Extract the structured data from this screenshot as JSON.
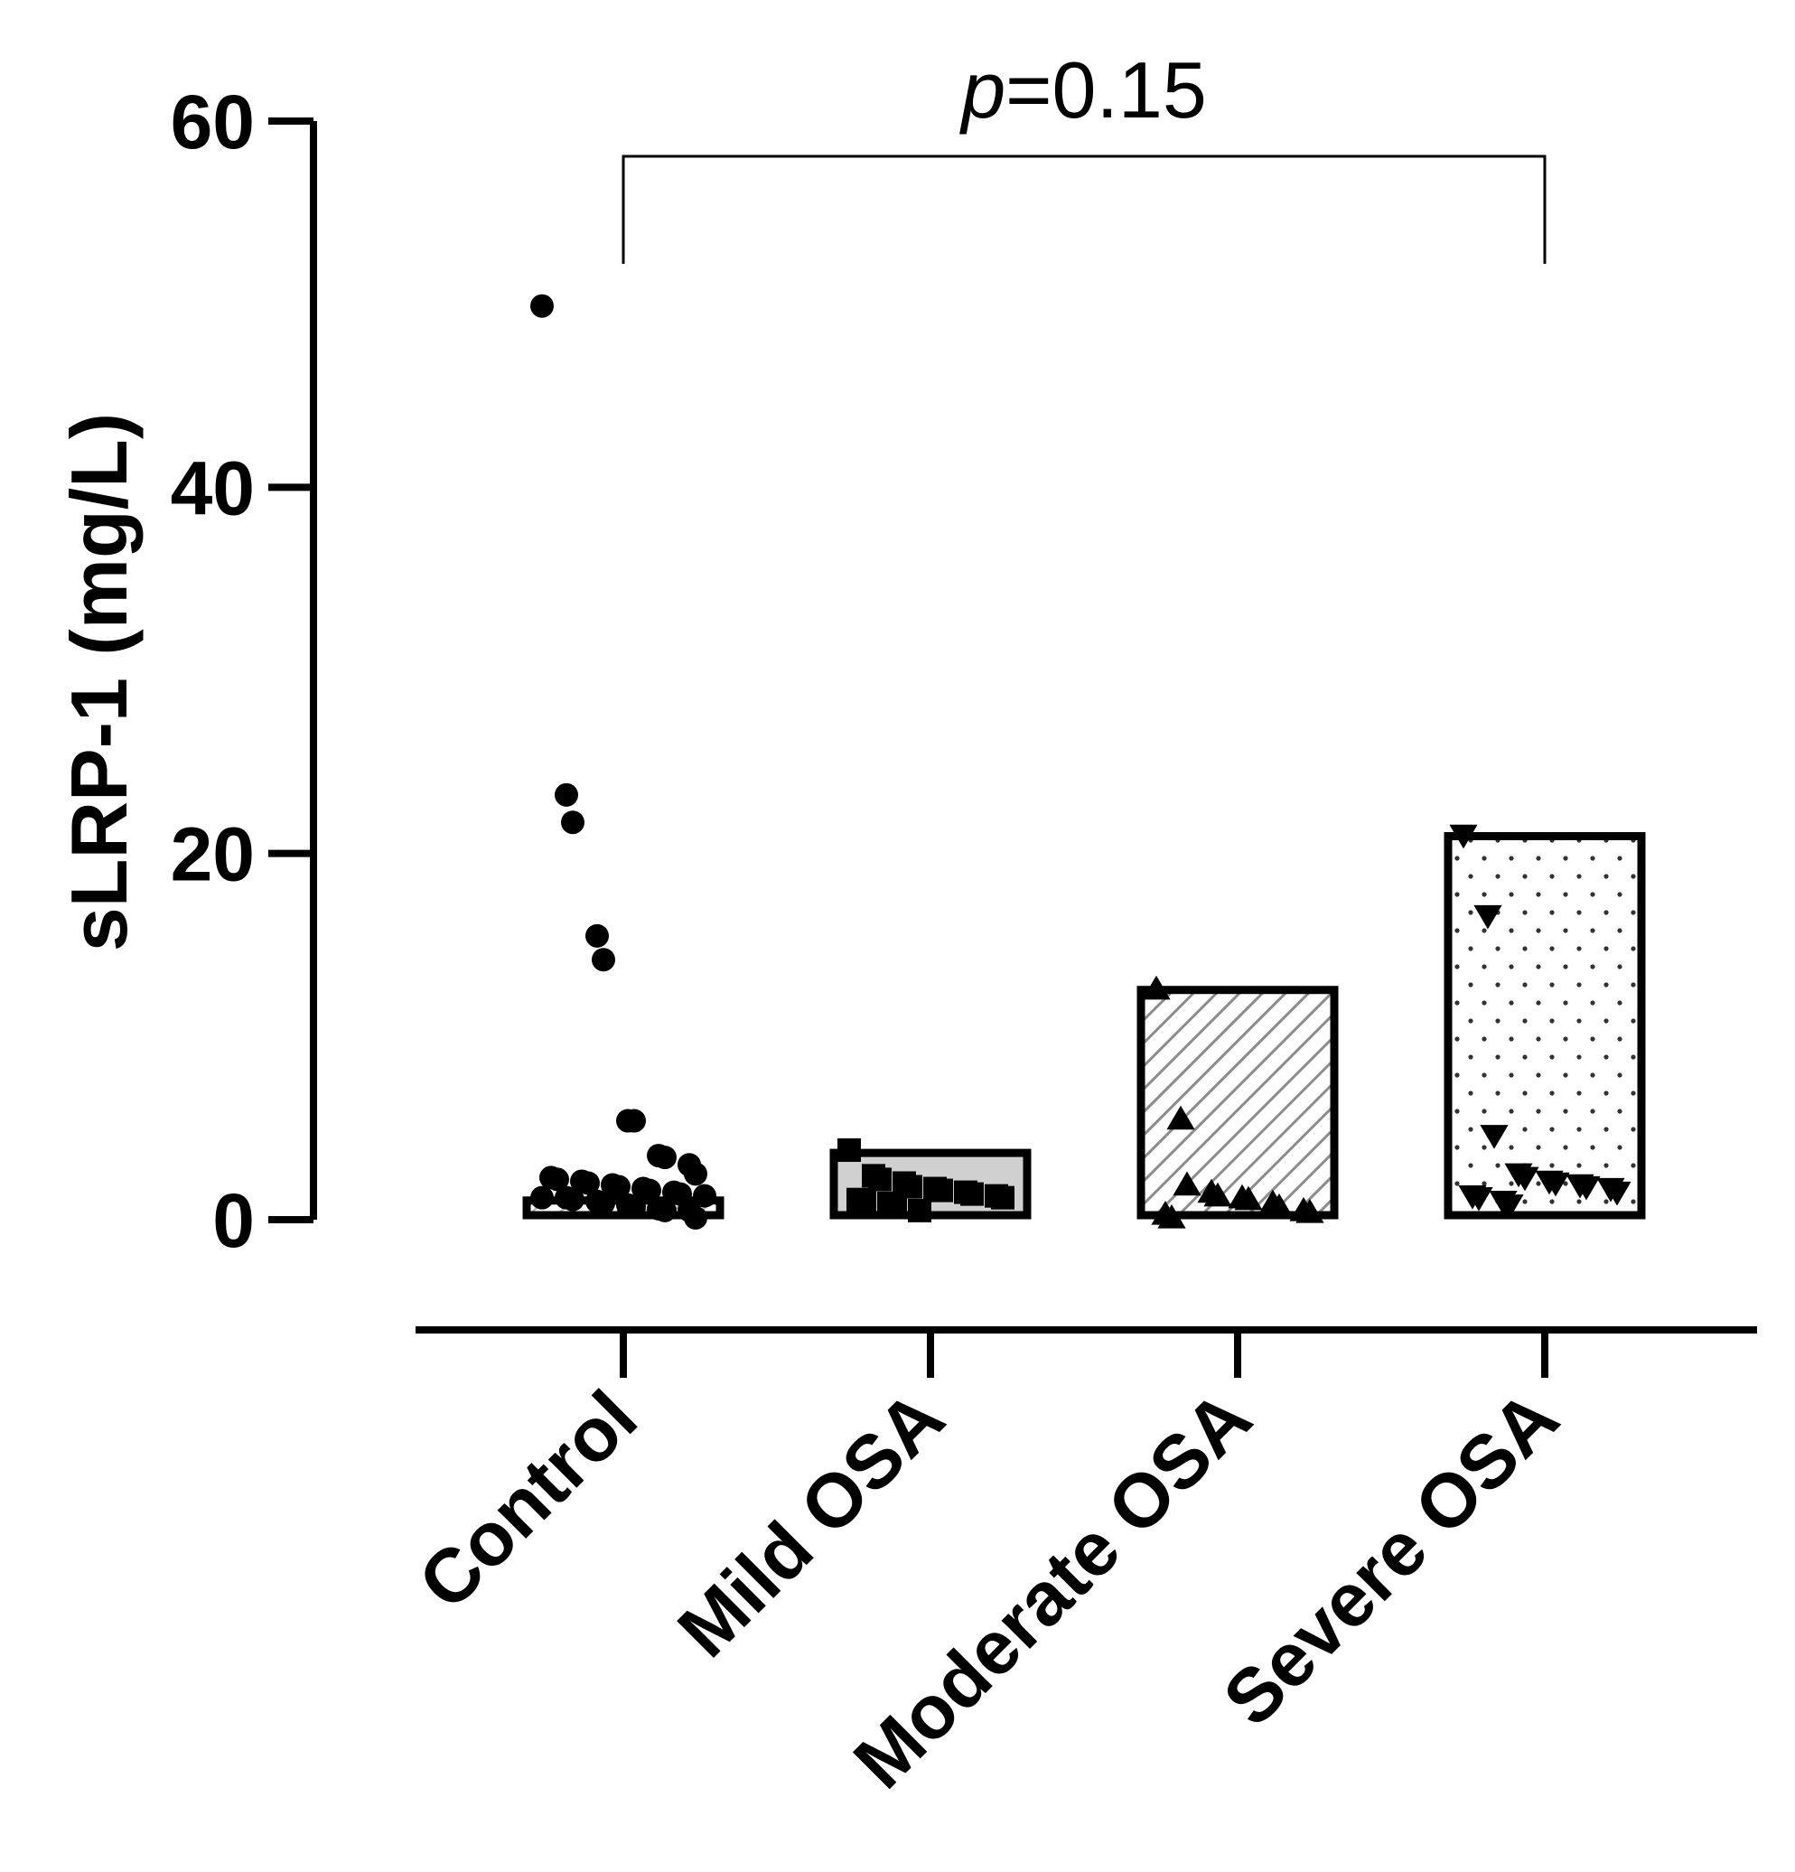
{
  "chart_data": {
    "type": "bar",
    "ylabel": "sLRP-1 (mg/L)",
    "xlabel": "",
    "ylim": [
      0,
      60
    ],
    "yticks": [
      0,
      20,
      40,
      60
    ],
    "grid": false,
    "categories": [
      "Control",
      "Mild OSA",
      "Moderate OSA",
      "Severe OSA"
    ],
    "values": [
      0.8,
      3.4,
      12.3,
      20.7
    ],
    "fill_patterns": [
      "diagonal-light",
      "solid-light-gray",
      "diagonal-dense",
      "dots"
    ],
    "marker_shapes": [
      "circle",
      "square",
      "triangle-up",
      "triangle-down"
    ],
    "points": [
      [
        49.9,
        23.2,
        21.7,
        15.5,
        14.2,
        5.4,
        5.4,
        3.5,
        3.4,
        3.0,
        2.5,
        2.3,
        2.2,
        2.1,
        2.0,
        1.9,
        1.8,
        1.7,
        1.6,
        1.5,
        1.4,
        1.3,
        1.2,
        1.2,
        1.1,
        1.0,
        0.9,
        0.8,
        0.7,
        0.6,
        0.5,
        0.5,
        0.1
      ],
      [
        3.8,
        2.4,
        2.2,
        2.0,
        1.8,
        1.7,
        1.6,
        1.5,
        1.4,
        1.3,
        1.2,
        1.1,
        1.0,
        0.9,
        0.7,
        0.5
      ],
      [
        12.6,
        5.5,
        1.9,
        1.5,
        1.3,
        1.2,
        1.1,
        0.9,
        0.7,
        0.5,
        0.4,
        0.3,
        0.1
      ],
      [
        21.0,
        16.6,
        4.6,
        2.5,
        2.3,
        2.1,
        2.0,
        1.9,
        1.8,
        1.7,
        1.5,
        1.3,
        1.2,
        1.0,
        0.8
      ]
    ],
    "annotation": {
      "text_italic": "p",
      "text": "=0.15",
      "from_category": "Control",
      "to_category": "Severe OSA"
    }
  }
}
